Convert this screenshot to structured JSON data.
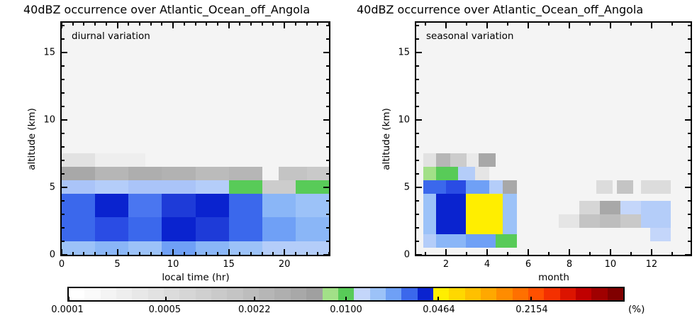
{
  "chart_data": [
    {
      "type": "heatmap",
      "title": "40dBZ occurrence over Atlantic_Ocean_off_Angola",
      "annotation": "diurnal variation",
      "xlabel": "local time (hr)",
      "ylabel": "altitude (km)",
      "xlim": [
        0,
        24
      ],
      "ylim": [
        0,
        17.2
      ],
      "xticks_major": [
        0,
        5,
        10,
        15,
        20
      ],
      "xminor_step": 1,
      "yticks_major": [
        0,
        5,
        10,
        15
      ],
      "yminor_step": 1,
      "cells": [
        {
          "x": [
            0,
            3
          ],
          "y": [
            0,
            1
          ],
          "c": "#9cc2f8"
        },
        {
          "x": [
            3,
            6
          ],
          "y": [
            0,
            1
          ],
          "c": "#8ab6f7"
        },
        {
          "x": [
            6,
            9
          ],
          "y": [
            0,
            1
          ],
          "c": "#9cc2f8"
        },
        {
          "x": [
            9,
            12
          ],
          "y": [
            0,
            1
          ],
          "c": "#6fa0f6"
        },
        {
          "x": [
            12,
            15
          ],
          "y": [
            0,
            1
          ],
          "c": "#8ab6f7"
        },
        {
          "x": [
            15,
            18
          ],
          "y": [
            0,
            1
          ],
          "c": "#9cc2f8"
        },
        {
          "x": [
            18,
            21
          ],
          "y": [
            0,
            1
          ],
          "c": "#b4cdf9"
        },
        {
          "x": [
            21,
            24
          ],
          "y": [
            0,
            1
          ],
          "c": "#b4cdf9"
        },
        {
          "x": [
            0,
            3
          ],
          "y": [
            1,
            2.8
          ],
          "c": "#3b68ec"
        },
        {
          "x": [
            3,
            6
          ],
          "y": [
            1,
            2.8
          ],
          "c": "#2a4ce4"
        },
        {
          "x": [
            6,
            9
          ],
          "y": [
            1,
            2.8
          ],
          "c": "#3b68ec"
        },
        {
          "x": [
            9,
            12
          ],
          "y": [
            1,
            2.8
          ],
          "c": "#0a23cf"
        },
        {
          "x": [
            12,
            15
          ],
          "y": [
            1,
            2.8
          ],
          "c": "#1e3bd8"
        },
        {
          "x": [
            15,
            18
          ],
          "y": [
            1,
            2.8
          ],
          "c": "#3b68ec"
        },
        {
          "x": [
            18,
            21
          ],
          "y": [
            1,
            2.8
          ],
          "c": "#6fa0f6"
        },
        {
          "x": [
            21,
            24
          ],
          "y": [
            1,
            2.8
          ],
          "c": "#8ab6f7"
        },
        {
          "x": [
            0,
            3
          ],
          "y": [
            2.8,
            4.5
          ],
          "c": "#3b68ec"
        },
        {
          "x": [
            3,
            6
          ],
          "y": [
            2.8,
            4.5
          ],
          "c": "#0a23cf"
        },
        {
          "x": [
            6,
            9
          ],
          "y": [
            2.8,
            4.5
          ],
          "c": "#4a76f0"
        },
        {
          "x": [
            9,
            12
          ],
          "y": [
            2.8,
            4.5
          ],
          "c": "#1e3bd8"
        },
        {
          "x": [
            12,
            15
          ],
          "y": [
            2.8,
            4.5
          ],
          "c": "#0a23cf"
        },
        {
          "x": [
            15,
            18
          ],
          "y": [
            2.8,
            4.5
          ],
          "c": "#3b68ec"
        },
        {
          "x": [
            18,
            21
          ],
          "y": [
            2.8,
            4.5
          ],
          "c": "#8ab6f7"
        },
        {
          "x": [
            21,
            24
          ],
          "y": [
            2.8,
            4.5
          ],
          "c": "#9cc2f8"
        },
        {
          "x": [
            0,
            3
          ],
          "y": [
            4.5,
            5.5
          ],
          "c": "#aac4f8"
        },
        {
          "x": [
            3,
            6
          ],
          "y": [
            4.5,
            5.5
          ],
          "c": "#b4cdf9"
        },
        {
          "x": [
            6,
            9
          ],
          "y": [
            4.5,
            5.5
          ],
          "c": "#aac4f8"
        },
        {
          "x": [
            9,
            12
          ],
          "y": [
            4.5,
            5.5
          ],
          "c": "#aac4f8"
        },
        {
          "x": [
            12,
            15
          ],
          "y": [
            4.5,
            5.5
          ],
          "c": "#b4cdf9"
        },
        {
          "x": [
            15,
            18
          ],
          "y": [
            4.5,
            5.5
          ],
          "c": "#58cb58"
        },
        {
          "x": [
            18,
            21
          ],
          "y": [
            4.5,
            5.5
          ],
          "c": "#cccccc"
        },
        {
          "x": [
            21,
            24
          ],
          "y": [
            4.5,
            5.5
          ],
          "c": "#58cb58"
        },
        {
          "x": [
            0,
            3
          ],
          "y": [
            5.5,
            6.5
          ],
          "c": "#a8a8a8"
        },
        {
          "x": [
            3,
            6
          ],
          "y": [
            5.5,
            6.5
          ],
          "c": "#b6b6b6"
        },
        {
          "x": [
            6,
            9
          ],
          "y": [
            5.5,
            6.5
          ],
          "c": "#aeaeae"
        },
        {
          "x": [
            9,
            12
          ],
          "y": [
            5.5,
            6.5
          ],
          "c": "#b2b2b2"
        },
        {
          "x": [
            12,
            15
          ],
          "y": [
            5.5,
            6.5
          ],
          "c": "#bbbbbb"
        },
        {
          "x": [
            15,
            18
          ],
          "y": [
            5.5,
            6.5
          ],
          "c": "#b6b6b6"
        },
        {
          "x": [
            19.5,
            22
          ],
          "y": [
            5.5,
            6.5
          ],
          "c": "#c4c4c4"
        },
        {
          "x": [
            22,
            24
          ],
          "y": [
            5.5,
            6.5
          ],
          "c": "#c9c9c9"
        },
        {
          "x": [
            0,
            3
          ],
          "y": [
            6.5,
            7.5
          ],
          "c": "#e2e2e2"
        },
        {
          "x": [
            3,
            7.5
          ],
          "y": [
            6.5,
            7.5
          ],
          "c": "#eeeeee"
        }
      ]
    },
    {
      "type": "heatmap",
      "title": "40dBZ occurrence over Atlantic_Ocean_off_Angola",
      "annotation": "seasonal variation",
      "xlabel": "month",
      "ylabel": "altitude (km)",
      "xlim": [
        0.55,
        13.9
      ],
      "ylim": [
        0,
        17.2
      ],
      "xticks_major": [
        2,
        4,
        6,
        8,
        10,
        12
      ],
      "xminor_step": 1,
      "yticks_major": [
        0,
        5,
        10,
        15
      ],
      "yminor_step": 1,
      "cells": [
        {
          "x": [
            0.9,
            1.5
          ],
          "y": [
            1.5,
            4.5
          ],
          "c": "#9cc2f8"
        },
        {
          "x": [
            1.5,
            2.95
          ],
          "y": [
            1.5,
            4.5
          ],
          "c": "#0a23cf"
        },
        {
          "x": [
            2.95,
            4.75
          ],
          "y": [
            1.5,
            4.5
          ],
          "c": "#ffee00"
        },
        {
          "x": [
            4.75,
            5.45
          ],
          "y": [
            1.5,
            4.5
          ],
          "c": "#9cc2f8"
        },
        {
          "x": [
            0.9,
            1.5
          ],
          "y": [
            0.5,
            1.5
          ],
          "c": "#b4cdf9"
        },
        {
          "x": [
            1.5,
            2.95
          ],
          "y": [
            0.5,
            1.5
          ],
          "c": "#8ab6f7"
        },
        {
          "x": [
            2.95,
            4.4
          ],
          "y": [
            0.5,
            1.5
          ],
          "c": "#6fa0f6"
        },
        {
          "x": [
            4.4,
            5.45
          ],
          "y": [
            0.5,
            1.5
          ],
          "c": "#58cb58"
        },
        {
          "x": [
            0.9,
            2.0
          ],
          "y": [
            4.5,
            5.5
          ],
          "c": "#3b68ec"
        },
        {
          "x": [
            2.0,
            2.95
          ],
          "y": [
            4.5,
            5.5
          ],
          "c": "#2a4ce4"
        },
        {
          "x": [
            2.95,
            4.1
          ],
          "y": [
            4.5,
            5.5
          ],
          "c": "#6fa0f6"
        },
        {
          "x": [
            4.1,
            4.75
          ],
          "y": [
            4.5,
            5.5
          ],
          "c": "#b4cdf9"
        },
        {
          "x": [
            4.75,
            5.45
          ],
          "y": [
            4.5,
            5.5
          ],
          "c": "#a8a8a8"
        },
        {
          "x": [
            0.9,
            1.5
          ],
          "y": [
            5.5,
            6.5
          ],
          "c": "#a2e088"
        },
        {
          "x": [
            1.5,
            2.6
          ],
          "y": [
            5.5,
            6.5
          ],
          "c": "#58cb58"
        },
        {
          "x": [
            2.6,
            3.4
          ],
          "y": [
            5.5,
            6.5
          ],
          "c": "#b4cdf9"
        },
        {
          "x": [
            3.4,
            4.1
          ],
          "y": [
            5.5,
            6.5
          ],
          "c": "#e5e5e5"
        },
        {
          "x": [
            0.9,
            1.5
          ],
          "y": [
            6.5,
            7.5
          ],
          "c": "#e2e2e2"
        },
        {
          "x": [
            1.5,
            2.2
          ],
          "y": [
            6.5,
            7.5
          ],
          "c": "#b6b6b6"
        },
        {
          "x": [
            2.2,
            3.0
          ],
          "y": [
            6.5,
            7.5
          ],
          "c": "#cccccc"
        },
        {
          "x": [
            3.0,
            3.6
          ],
          "y": [
            6.5,
            7.5
          ],
          "c": "#eaeaea"
        },
        {
          "x": [
            3.6,
            4.4
          ],
          "y": [
            6.5,
            7.5
          ],
          "c": "#a8a8a8"
        },
        {
          "x": [
            7.5,
            8.5
          ],
          "y": [
            2,
            3
          ],
          "c": "#e5e5e5"
        },
        {
          "x": [
            8.5,
            9.5
          ],
          "y": [
            3,
            4
          ],
          "c": "#d6d6d6"
        },
        {
          "x": [
            8.5,
            9.5
          ],
          "y": [
            2,
            3
          ],
          "c": "#c4c4c4"
        },
        {
          "x": [
            9.5,
            10.5
          ],
          "y": [
            3,
            4
          ],
          "c": "#a8a8a8"
        },
        {
          "x": [
            9.5,
            10.5
          ],
          "y": [
            2,
            3
          ],
          "c": "#bdbdbd"
        },
        {
          "x": [
            9.3,
            10.1
          ],
          "y": [
            4.5,
            5.5
          ],
          "c": "#dcdcdc"
        },
        {
          "x": [
            10.5,
            11.5
          ],
          "y": [
            3,
            4
          ],
          "c": "#c4d6fa"
        },
        {
          "x": [
            10.5,
            11.5
          ],
          "y": [
            2,
            3
          ],
          "c": "#c9c9c9"
        },
        {
          "x": [
            10.3,
            11.1
          ],
          "y": [
            4.5,
            5.5
          ],
          "c": "#c4c4c4"
        },
        {
          "x": [
            11.5,
            12.95
          ],
          "y": [
            2,
            4
          ],
          "c": "#b4cdf9"
        },
        {
          "x": [
            11.5,
            12.95
          ],
          "y": [
            4.5,
            5.5
          ],
          "c": "#dcdcdc"
        },
        {
          "x": [
            11.95,
            12.95
          ],
          "y": [
            1,
            2
          ],
          "c": "#c4d6fa"
        }
      ]
    }
  ],
  "colorbar": {
    "unit_label": "(%)",
    "log_min": -4,
    "log_max": 0,
    "tick_values": [
      "0.0001",
      "0.0005",
      "0.0022",
      "0.0100",
      "0.0464",
      "0.2154"
    ],
    "colors": [
      "#ffffff",
      "#fafafa",
      "#f4f4f4",
      "#eeeeee",
      "#e8e8e8",
      "#e2e2e2",
      "#dcdcdc",
      "#d6d6d6",
      "#d0d0d0",
      "#cacaca",
      "#c4c4c4",
      "#bdbdbd",
      "#b6b6b6",
      "#afafaf",
      "#a8a8a8",
      "#a0a0a0",
      "#a2e088",
      "#58cb58",
      "#c4d6fa",
      "#9cc2f8",
      "#6fa0f6",
      "#3b68ec",
      "#0a23cf",
      "#ffee00",
      "#ffd800",
      "#ffc000",
      "#ffa800",
      "#ff8c00",
      "#ff7000",
      "#ff5000",
      "#f43000",
      "#dc1400",
      "#c00000",
      "#a00000",
      "#800000"
    ]
  }
}
